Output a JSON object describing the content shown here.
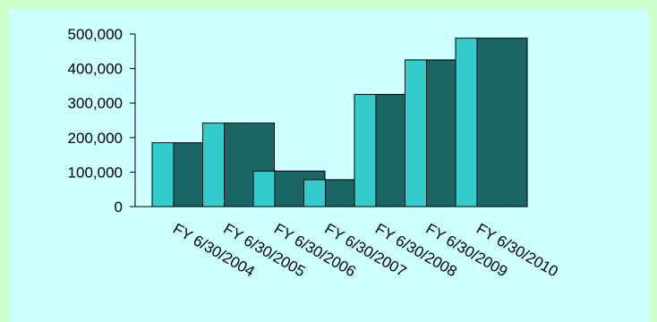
{
  "chart_data": {
    "type": "bar",
    "categories": [
      "FY 6/30/2004",
      "FY 6/30/2005",
      "FY 6/30/2006",
      "FY 6/30/2007",
      "FY 6/30/2008",
      "FY 6/30/2009",
      "FY 6/30/2010"
    ],
    "series": [
      {
        "values": [
          185000,
          242000,
          103000,
          78000,
          325000,
          425000,
          488000
        ],
        "color": "#33cccc"
      },
      {
        "values": [
          185000,
          242000,
          103000,
          78000,
          325000,
          425000,
          488000
        ],
        "color": "#1a6666"
      }
    ],
    "ylim": [
      0,
      500000
    ],
    "yticks": [
      "0",
      "100,000",
      "200,000",
      "300,000",
      "400,000",
      "500,000"
    ],
    "grid": false,
    "legend": "none",
    "background_outer": "#ccffcc",
    "background_plot": "#ccffff"
  }
}
